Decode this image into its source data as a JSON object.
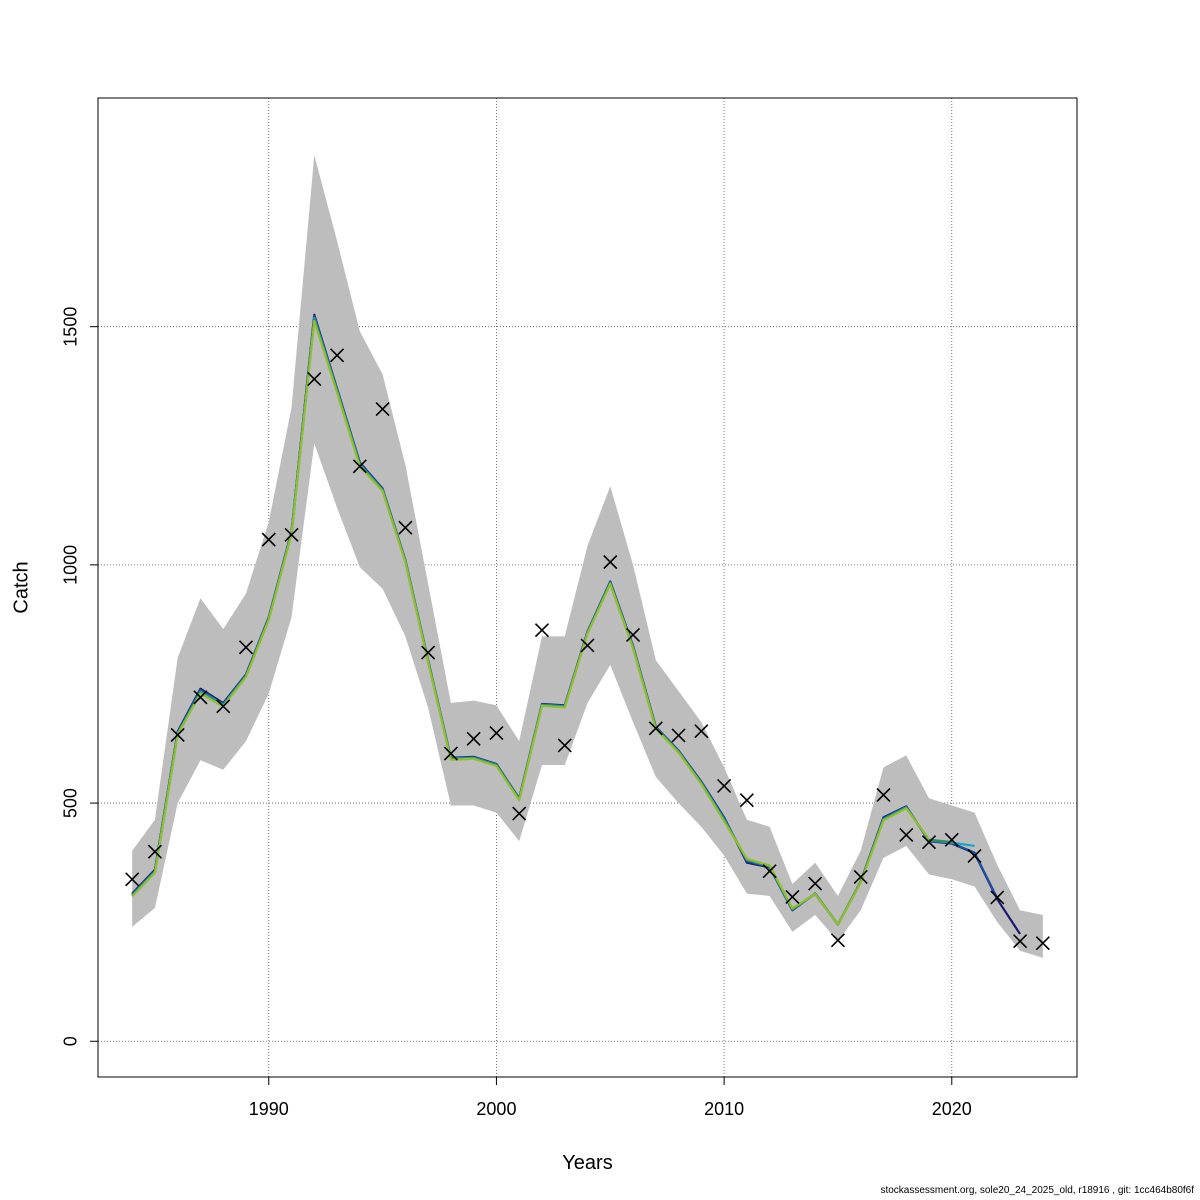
{
  "chart_data": {
    "type": "line",
    "xlabel": "Years",
    "ylabel": "Catch",
    "xlim": [
      1982.5,
      2025.5
    ],
    "ylim": [
      -75,
      1980
    ],
    "x_ticks": [
      1990,
      2000,
      2010,
      2020
    ],
    "y_ticks": [
      0,
      500,
      1000,
      1500
    ],
    "grid": true,
    "years": [
      1984,
      1985,
      1986,
      1987,
      1988,
      1989,
      1990,
      1991,
      1992,
      1993,
      1994,
      1995,
      1996,
      1997,
      1998,
      1999,
      2000,
      2001,
      2002,
      2003,
      2004,
      2005,
      2006,
      2007,
      2008,
      2009,
      2010,
      2011,
      2012,
      2013,
      2014,
      2015,
      2016,
      2017,
      2018,
      2019,
      2020,
      2021,
      2022,
      2023,
      2024
    ],
    "band_lower": [
      240,
      280,
      500,
      590,
      570,
      630,
      730,
      890,
      1255,
      1120,
      995,
      950,
      850,
      700,
      495,
      495,
      480,
      420,
      580,
      580,
      710,
      790,
      670,
      555,
      500,
      450,
      390,
      310,
      305,
      230,
      265,
      210,
      275,
      385,
      410,
      350,
      340,
      325,
      250,
      190,
      175
    ],
    "band_upper": [
      400,
      465,
      805,
      930,
      865,
      940,
      1090,
      1330,
      1860,
      1680,
      1490,
      1400,
      1210,
      960,
      710,
      715,
      705,
      630,
      850,
      850,
      1040,
      1165,
      1000,
      800,
      735,
      670,
      575,
      465,
      450,
      330,
      375,
      305,
      400,
      575,
      600,
      510,
      495,
      480,
      370,
      275,
      265
    ],
    "observed": [
      340,
      398,
      643,
      722,
      703,
      827,
      1053,
      1063,
      1390,
      1440,
      1207,
      1327,
      1078,
      816,
      604,
      635,
      647,
      478,
      863,
      621,
      831,
      1006,
      853,
      657,
      642,
      651,
      536,
      506,
      357,
      303,
      331,
      212,
      345,
      517,
      433,
      418,
      423,
      389,
      302,
      210,
      206
    ],
    "series": [
      {
        "color": "#1a1a6e",
        "values": [
          310,
          360,
          650,
          740,
          710,
          770,
          890,
          1070,
          1525,
          1370,
          1215,
          1160,
          1010,
          800,
          595,
          597,
          582,
          510,
          708,
          705,
          860,
          965,
          830,
          660,
          610,
          545,
          470,
          375,
          365,
          275,
          310,
          245,
          335,
          470,
          493,
          420,
          415,
          395,
          298,
          225,
          null
        ]
      },
      {
        "color": "#1e4f9c",
        "values": [
          308,
          358,
          648,
          737,
          708,
          769,
          889,
          1069,
          1522,
          1368,
          1213,
          1159,
          1009,
          799,
          594,
          596,
          581,
          509,
          707,
          704,
          859,
          964,
          829,
          659,
          609,
          544,
          469,
          378,
          366,
          276,
          310,
          245,
          335,
          468,
          492,
          421,
          416,
          396,
          300,
          null,
          null
        ]
      },
      {
        "color": "#17a3c4",
        "values": [
          306,
          356,
          646,
          734,
          706,
          767,
          887,
          1067,
          1518,
          1366,
          1211,
          1157,
          1008,
          798,
          593,
          595,
          580,
          508,
          706,
          703,
          858,
          962,
          827,
          658,
          608,
          542,
          465,
          381,
          367,
          277,
          309,
          245,
          334,
          466,
          491,
          422,
          417,
          410,
          null,
          null,
          null
        ]
      },
      {
        "color": "#2e8b57",
        "values": [
          305,
          355,
          645,
          732,
          704,
          766,
          886,
          1066,
          1515,
          1364,
          1209,
          1156,
          1007,
          797,
          592,
          594,
          579,
          507,
          705,
          702,
          857,
          961,
          826,
          657,
          607,
          541,
          463,
          382,
          368,
          278,
          309,
          245,
          334,
          465,
          490,
          423,
          418,
          null,
          null,
          null,
          null
        ]
      },
      {
        "color": "#8fbf2a",
        "values": [
          304,
          354,
          644,
          730,
          703,
          765,
          885,
          1065,
          1512,
          1362,
          1207,
          1155,
          1006,
          796,
          591,
          593,
          578,
          506,
          704,
          701,
          856,
          960,
          825,
          656,
          606,
          540,
          462,
          383,
          369,
          279,
          309,
          245,
          333,
          464,
          489,
          424,
          null,
          null,
          null,
          null,
          null
        ]
      }
    ]
  },
  "footer": "stockassessment.org, sole20_24_2025_old, r18916 , git: 1cc464b80f6f"
}
